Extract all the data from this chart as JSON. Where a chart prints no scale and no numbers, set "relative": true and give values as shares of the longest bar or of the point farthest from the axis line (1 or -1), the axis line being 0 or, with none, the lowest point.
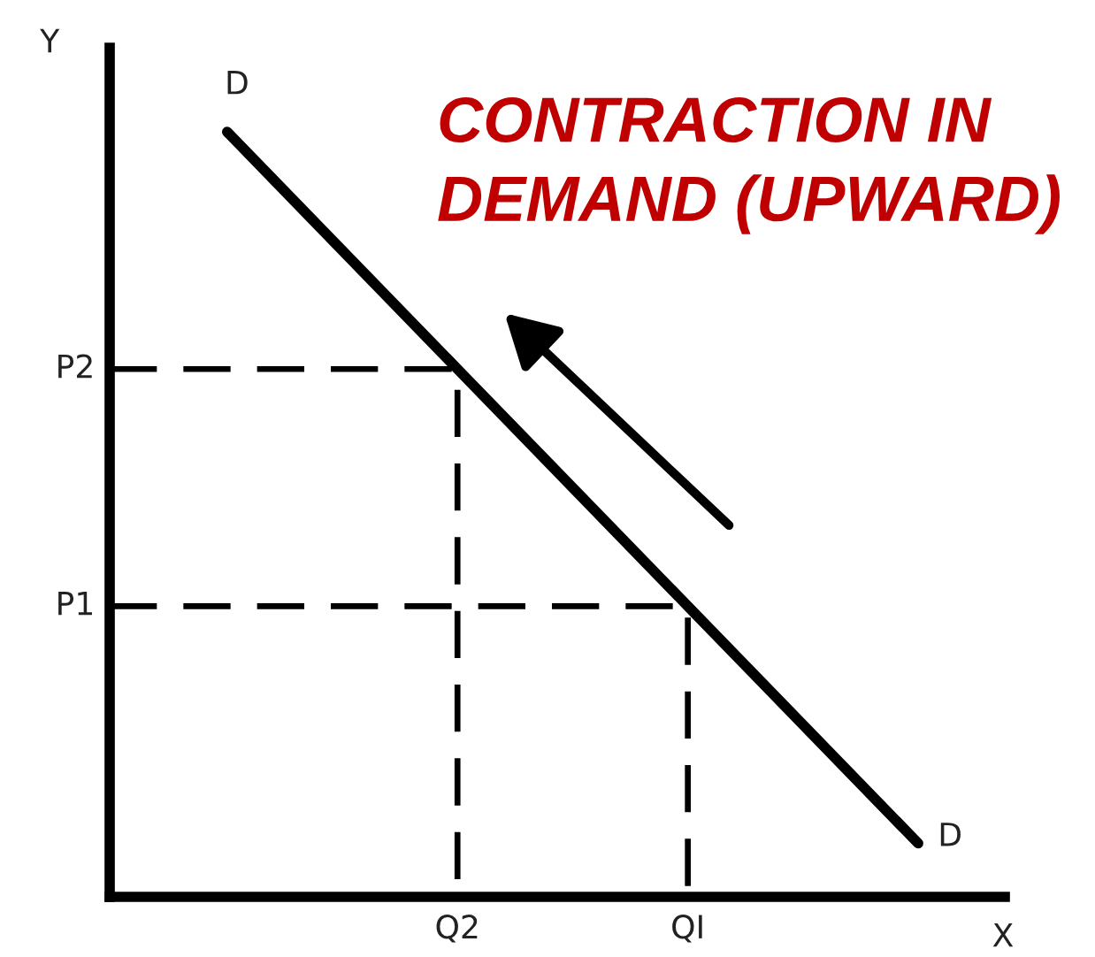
{
  "chart_data": {
    "type": "line",
    "title": "CONTRACTION IN DEMAND (UPWARD)",
    "xlabel": "X",
    "ylabel": "Y",
    "relative": true,
    "categories": [
      null,
      "Q2",
      "QI",
      null
    ],
    "series": [
      {
        "color": "#000000",
        "line_style": "solid",
        "values": [
          1.0,
          0.69,
          0.38,
          0.07
        ]
      }
    ],
    "ref_lines": [
      {
        "axis": "y",
        "value": 0.69,
        "label": "P2",
        "color": "#000000",
        "line_style": "dashed"
      },
      {
        "axis": "y",
        "value": 0.38,
        "label": "P1",
        "color": "#000000",
        "line_style": "dashed"
      }
    ],
    "annotations": [
      "D",
      "D"
    ]
  }
}
